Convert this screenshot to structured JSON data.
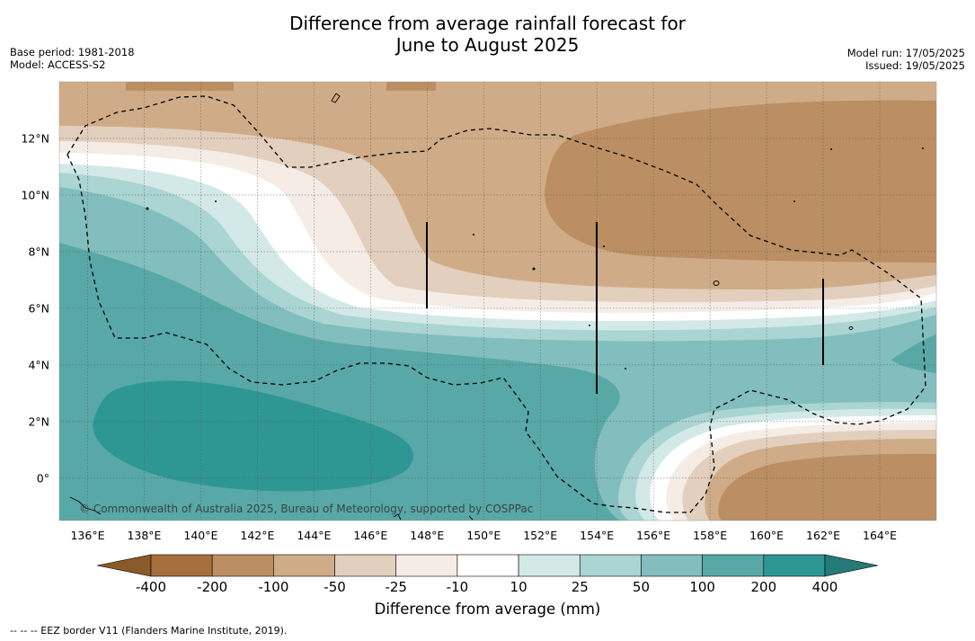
{
  "title_line1": "Difference from average rainfall forecast for",
  "title_line2": "June to August 2025",
  "meta_left": {
    "base_period": "Base period: 1981-2018",
    "model": "Model: ACCESS-S2"
  },
  "meta_right": {
    "model_run": "Model run: 17/05/2025",
    "issued": "Issued: 19/05/2025"
  },
  "copyright": "© Commonwealth of Australia 2025, Bureau of Meteorology, supported by COSPPac",
  "footer": "-- -- -- EEZ border V11 (Flanders Marine Institute, 2019).",
  "map": {
    "lon_labels": [
      "136°E",
      "138°E",
      "140°E",
      "142°E",
      "144°E",
      "146°E",
      "148°E",
      "150°E",
      "152°E",
      "154°E",
      "156°E",
      "158°E",
      "160°E",
      "162°E",
      "164°E"
    ],
    "lat_labels": [
      "12°N",
      "10°N",
      "8°N",
      "6°N",
      "4°N",
      "2°N",
      "0°"
    ],
    "lon_range": [
      135.0,
      166.0
    ],
    "lat_range": [
      -1.5,
      14.0
    ],
    "grid": true
  },
  "colorbar": {
    "title": "Difference from average (mm)",
    "ticks": [
      "-400",
      "-200",
      "-100",
      "-50",
      "-25",
      "-10",
      "10",
      "25",
      "50",
      "100",
      "200",
      "400"
    ],
    "colors": [
      "#a5703b",
      "#bb8f63",
      "#cfac87",
      "#e3cfbd",
      "#f5ece6",
      "#ffffff",
      "#d3e9e7",
      "#aad5d3",
      "#82bebd",
      "#58a8a7",
      "#2e9794",
      "#247a78"
    ]
  }
}
